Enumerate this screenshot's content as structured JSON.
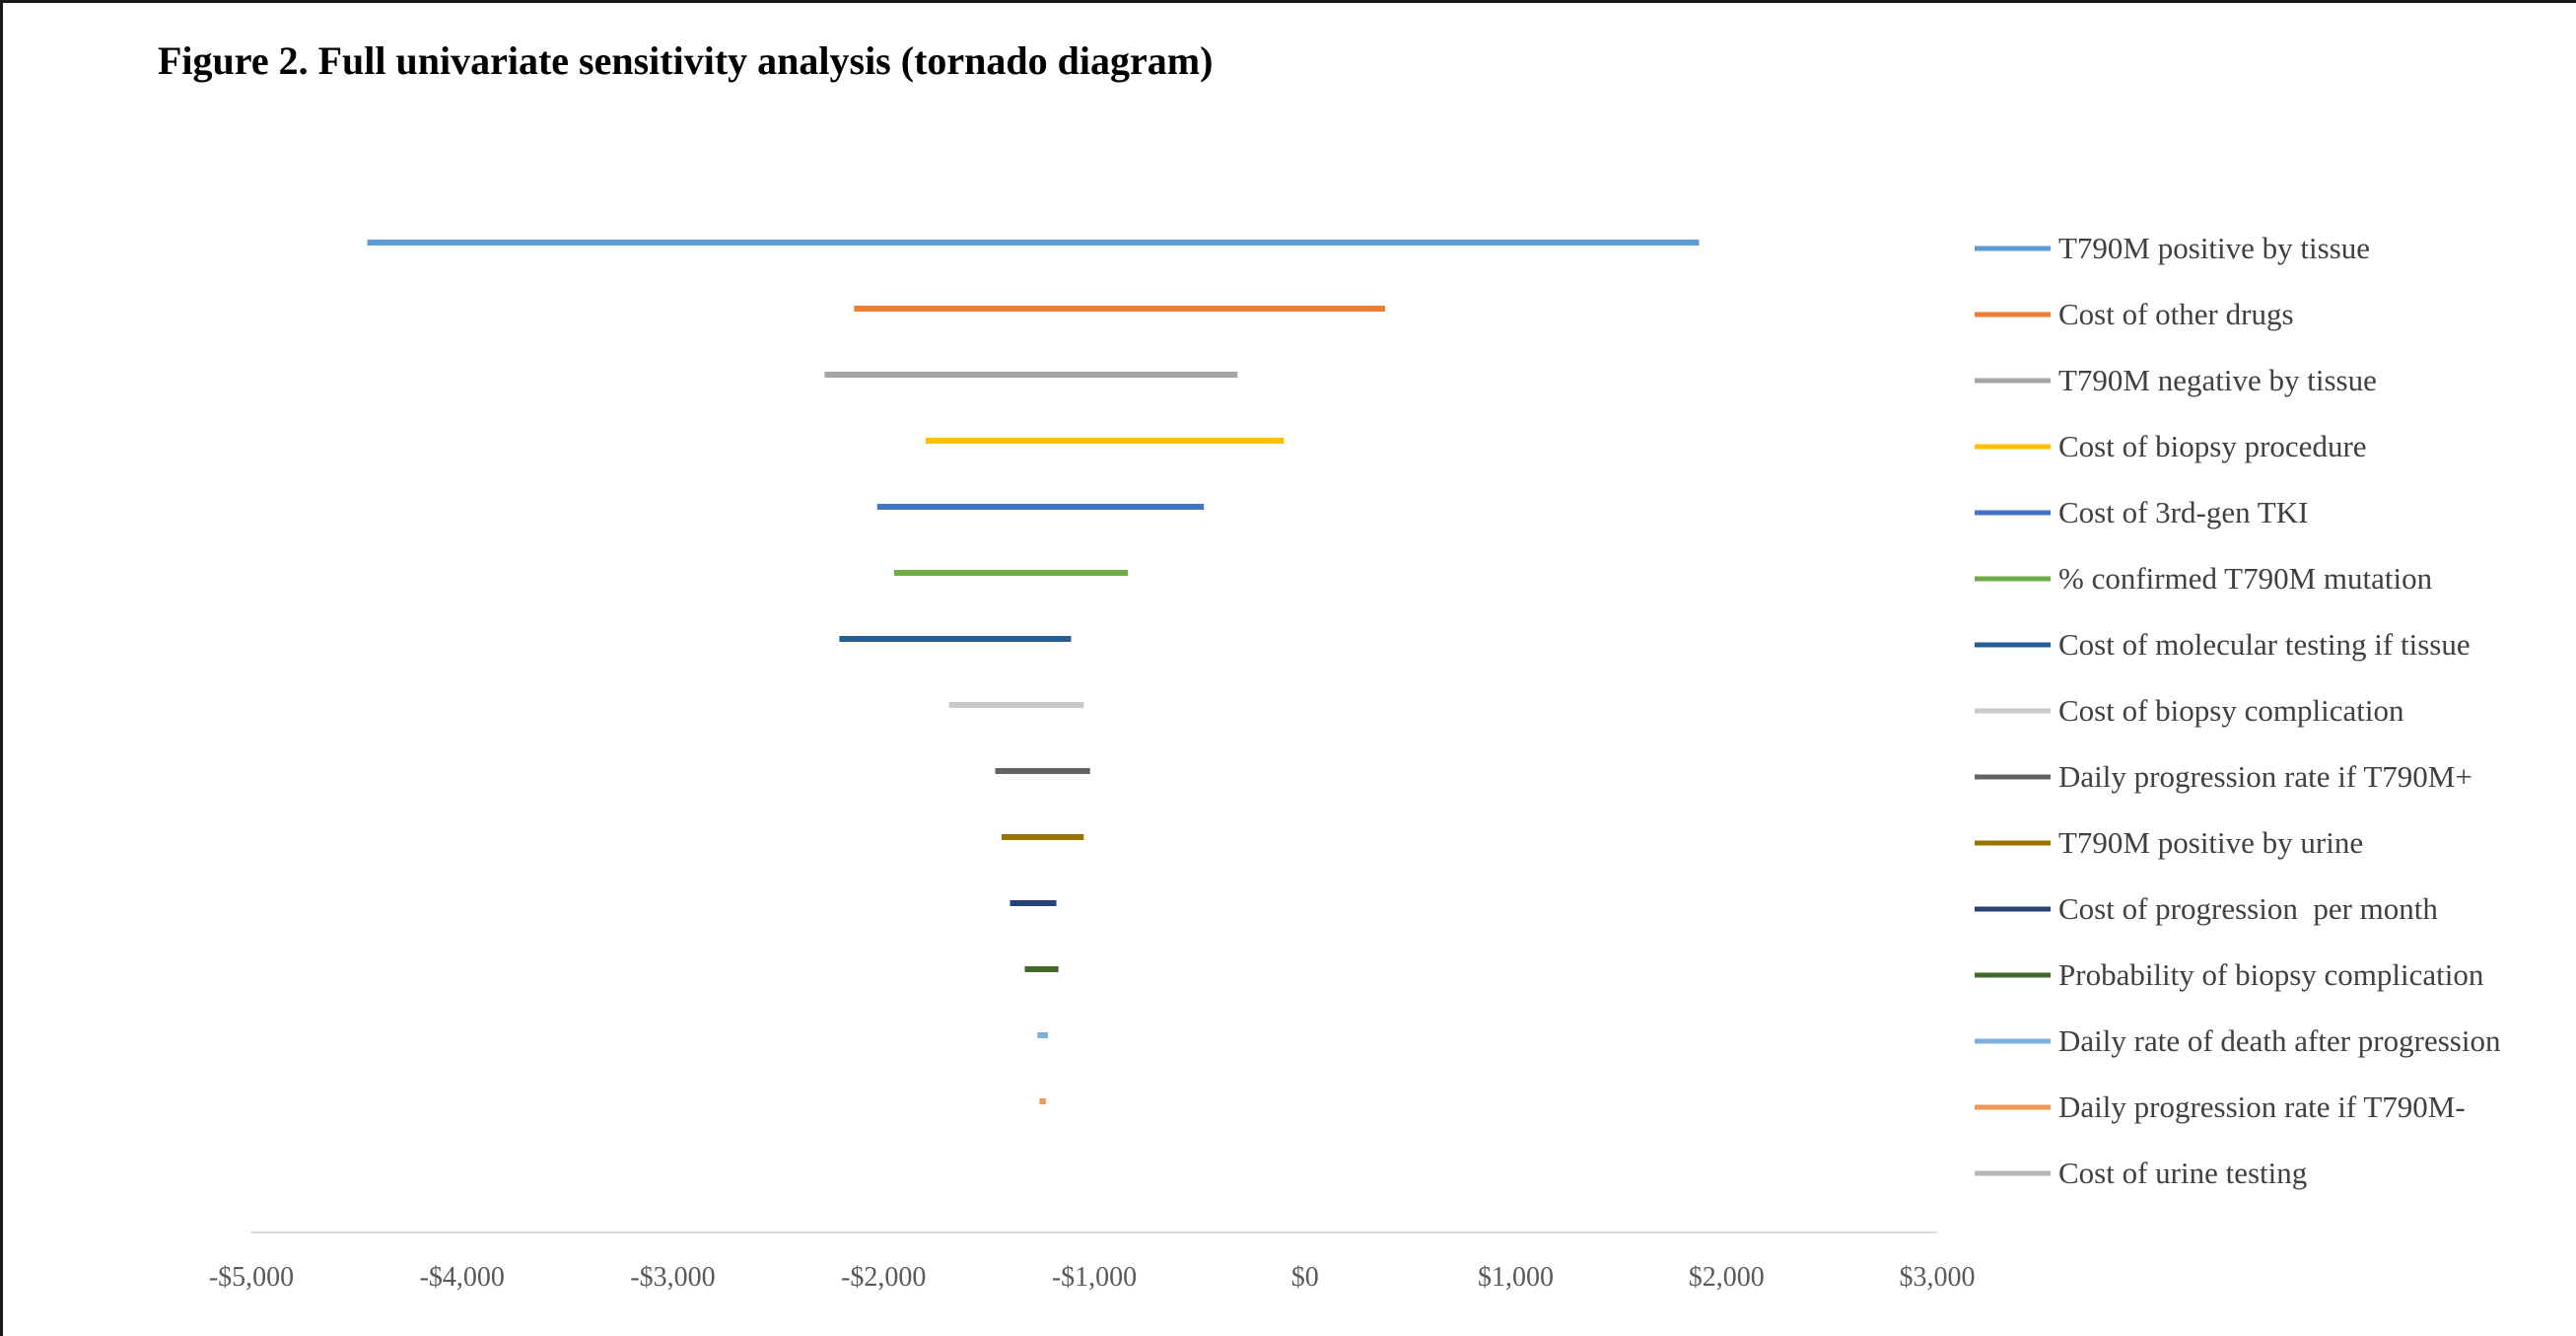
{
  "figure_title": "Figure 2. Full univariate sensitivity analysis (tornado diagram)",
  "chart_data": {
    "type": "bar",
    "orientation": "horizontal",
    "subtype": "tornado",
    "title": "Figure 2. Full univariate sensitivity analysis (tornado diagram)",
    "xlabel": "",
    "ylabel": "",
    "xlim": [
      -5000,
      3000
    ],
    "x_ticks": [
      -5000,
      -4000,
      -3000,
      -2000,
      -1000,
      0,
      1000,
      2000,
      3000
    ],
    "x_tick_labels": [
      "-$5,000",
      "-$4,000",
      "-$3,000",
      "-$2,000",
      "-$1,000",
      "$0",
      "$1,000",
      "$2,000",
      "$3,000"
    ],
    "grid": false,
    "legend_position": "right",
    "series": [
      {
        "name": "T790M positive by tissue",
        "low": -4450,
        "high": 1870,
        "color": "#5b9bd5"
      },
      {
        "name": "Cost of other drugs",
        "low": -2140,
        "high": 380,
        "color": "#ed7d31"
      },
      {
        "name": "T790M negative by tissue",
        "low": -2280,
        "high": -320,
        "color": "#a5a5a5"
      },
      {
        "name": "Cost of biopsy procedure",
        "low": -1800,
        "high": -100,
        "color": "#ffc000"
      },
      {
        "name": "Cost of 3rd-gen TKI",
        "low": -2030,
        "high": -480,
        "color": "#4472c4"
      },
      {
        "name": "% confirmed T790M mutation",
        "low": -1950,
        "high": -840,
        "color": "#70ad47"
      },
      {
        "name": "Cost of molecular testing if tissue",
        "low": -2210,
        "high": -1110,
        "color": "#255e91"
      },
      {
        "name": "Cost of biopsy complication",
        "low": -1690,
        "high": -1050,
        "color": "#c9c9c9"
      },
      {
        "name": "Daily progression rate if T790M+",
        "low": -1470,
        "high": -1020,
        "color": "#636363"
      },
      {
        "name": "T790M positive by urine",
        "low": -1440,
        "high": -1050,
        "color": "#997300"
      },
      {
        "name": "Cost of progression  per month",
        "low": -1400,
        "high": -1180,
        "color": "#264478"
      },
      {
        "name": "Probability of biopsy complication",
        "low": -1330,
        "high": -1170,
        "color": "#43682b"
      },
      {
        "name": "Daily rate of death after progression",
        "low": -1270,
        "high": -1220,
        "color": "#7cafdd"
      },
      {
        "name": "Daily progression rate if T790M-",
        "low": -1260,
        "high": -1230,
        "color": "#f1975a"
      },
      {
        "name": "Cost of urine testing",
        "low": -1240,
        "high": -1240,
        "color": "#b7b7b7"
      }
    ]
  }
}
